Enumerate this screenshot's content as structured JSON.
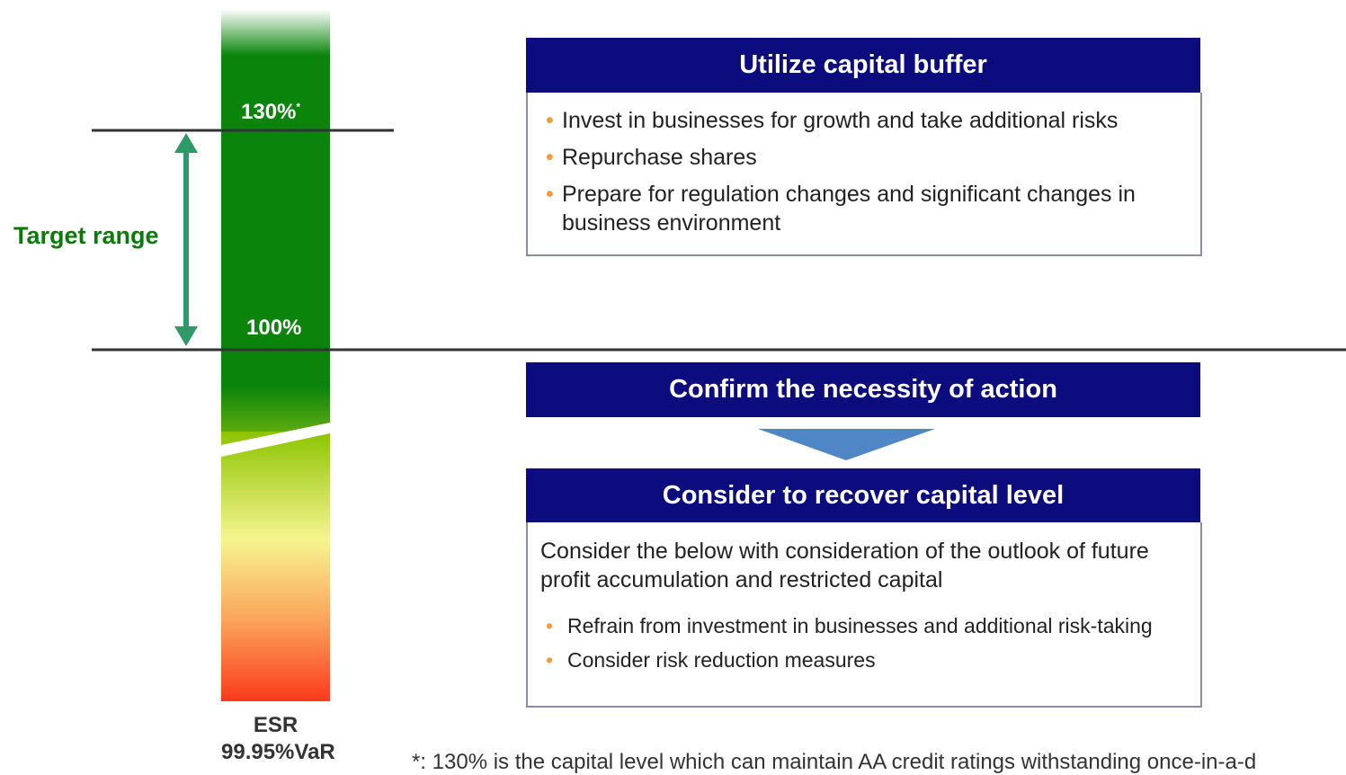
{
  "bar": {
    "upper_level": "130%",
    "upper_mark": "*",
    "lower_level": "100%",
    "axis_label_1": "ESR",
    "axis_label_2": "99.95%VaR"
  },
  "target_range": "Target range",
  "boxes": [
    {
      "title": "Utilize capital buffer",
      "items": [
        "Invest in businesses for growth and take additional risks",
        "Repurchase shares",
        "Prepare for regulation changes and significant changes in business environment"
      ]
    },
    {
      "title": "Confirm the necessity of action"
    },
    {
      "title": "Consider to recover capital level",
      "text": "Consider the below with consideration of the outlook of future profit accumulation and restricted capital",
      "items": [
        "Refrain from investment in businesses and additional risk-taking",
        "Consider risk reduction measures"
      ]
    }
  ],
  "footnote": "*: 130% is the capital level which can maintain AA credit ratings withstanding once-in-a-d"
}
